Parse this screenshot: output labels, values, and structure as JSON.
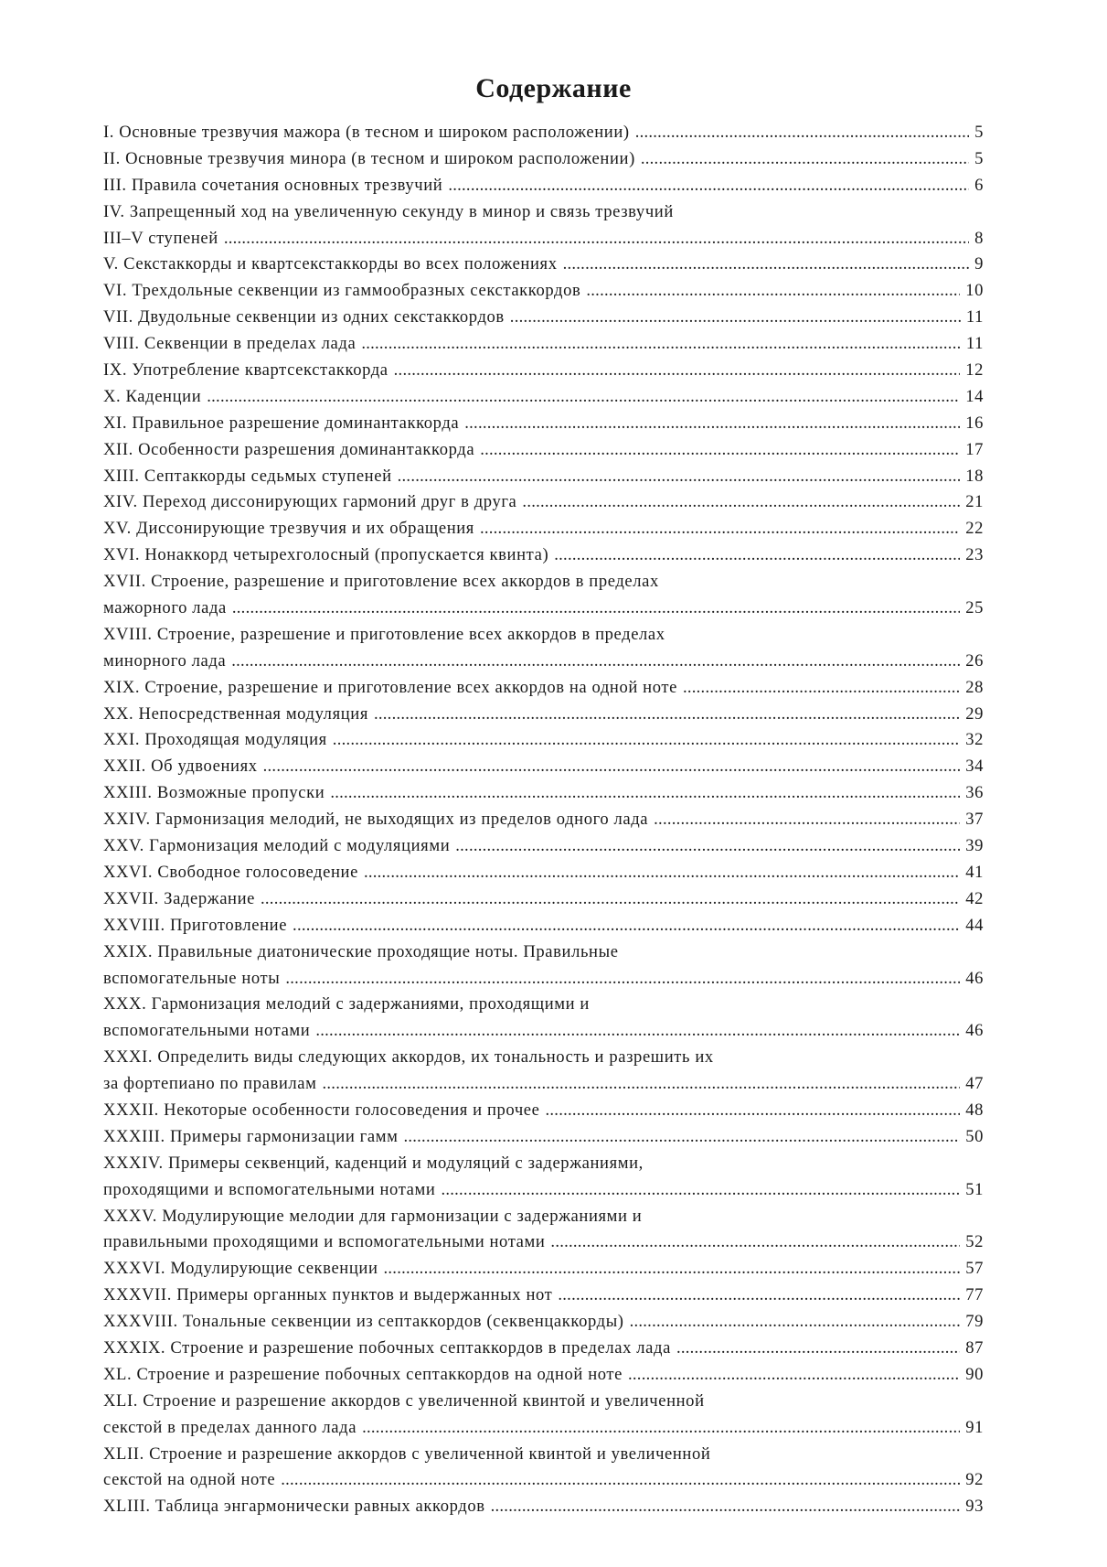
{
  "title": "Содержание",
  "entries": [
    {
      "lines": [
        "I. Основные трезвучия мажора (в тесном и широком расположении)"
      ],
      "page": "5"
    },
    {
      "lines": [
        "II. Основные трезвучия минора (в тесном и широком расположении)"
      ],
      "page": "5"
    },
    {
      "lines": [
        "III. Правила сочетания основных трезвучий"
      ],
      "page": "6"
    },
    {
      "lines": [
        "IV. Запрещенный ход на увеличенную секунду в минор и связь трезвучий",
        "III–V ступеней"
      ],
      "page": "8"
    },
    {
      "lines": [
        "V. Секстаккорды и квартсекстаккорды во всех положениях"
      ],
      "page": "9"
    },
    {
      "lines": [
        "VI. Трехдольные секвенции из гаммообразных секстаккордов"
      ],
      "page": "10"
    },
    {
      "lines": [
        "VII. Двудольные секвенции из одних секстаккордов"
      ],
      "page": "11"
    },
    {
      "lines": [
        "VIII. Секвенции в пределах лада"
      ],
      "page": "11"
    },
    {
      "lines": [
        "IX. Употребление квартсекстаккорда"
      ],
      "page": "12"
    },
    {
      "lines": [
        "X. Каденции"
      ],
      "page": "14"
    },
    {
      "lines": [
        "XI. Правильное разрешение доминантаккорда"
      ],
      "page": "16"
    },
    {
      "lines": [
        "XII. Особенности разрешения доминантаккорда"
      ],
      "page": "17"
    },
    {
      "lines": [
        "XIII. Септаккорды седьмых ступеней"
      ],
      "page": "18"
    },
    {
      "lines": [
        "XIV. Переход диссонирующих гармоний друг в друга"
      ],
      "page": "21"
    },
    {
      "lines": [
        "XV. Диссонирующие трезвучия и их обращения"
      ],
      "page": "22"
    },
    {
      "lines": [
        "XVI. Нонаккорд четырехголосный (пропускается квинта)"
      ],
      "page": "23"
    },
    {
      "lines": [
        "XVII. Строение, разрешение и приготовление всех аккордов в пределах",
        "мажорного лада"
      ],
      "page": "25"
    },
    {
      "lines": [
        "XVIII. Строение, разрешение и приготовление всех аккордов в пределах",
        "минорного лада"
      ],
      "page": "26"
    },
    {
      "lines": [
        "XIX. Строение, разрешение и приготовление всех аккордов на одной ноте"
      ],
      "page": "28"
    },
    {
      "lines": [
        "XX. Непосредственная модуляция"
      ],
      "page": "29"
    },
    {
      "lines": [
        "XXI. Проходящая модуляция"
      ],
      "page": "32"
    },
    {
      "lines": [
        "XXII. Об удвоениях"
      ],
      "page": "34"
    },
    {
      "lines": [
        "XXIII. Возможные пропуски"
      ],
      "page": "36"
    },
    {
      "lines": [
        "XXIV. Гармонизация мелодий, не выходящих из пределов одного лада"
      ],
      "page": "37"
    },
    {
      "lines": [
        "XXV. Гармонизация мелодий с модуляциями"
      ],
      "page": "39"
    },
    {
      "lines": [
        "XXVI. Свободное голосоведение"
      ],
      "page": "41"
    },
    {
      "lines": [
        "XXVII. Задержание"
      ],
      "page": "42"
    },
    {
      "lines": [
        "XXVIII. Приготовление"
      ],
      "page": "44"
    },
    {
      "lines": [
        "XXIX. Правильные диатонические проходящие ноты. Правильные",
        "вспомогательные ноты"
      ],
      "page": "46"
    },
    {
      "lines": [
        "XXX. Гармонизация мелодий с задержаниями, проходящими и",
        "вспомогательными нотами"
      ],
      "page": "46"
    },
    {
      "lines": [
        "XXXI. Определить виды следующих аккордов, их тональность и разрешить их",
        "за фортепиано по правилам"
      ],
      "page": "47"
    },
    {
      "lines": [
        "XXXII. Некоторые особенности голосоведения и прочее"
      ],
      "page": "48"
    },
    {
      "lines": [
        "XXXIII. Примеры гармонизации гамм"
      ],
      "page": "50"
    },
    {
      "lines": [
        "XXXIV. Примеры секвенций, каденций и модуляций с задержаниями,",
        "проходящими и вспомогательными нотами"
      ],
      "page": "51"
    },
    {
      "lines": [
        "XXXV. Модулирующие мелодии для гармонизации с задержаниями и",
        "правильными проходящими и вспомогательными нотами"
      ],
      "page": "52"
    },
    {
      "lines": [
        "XXXVI. Модулирующие секвенции"
      ],
      "page": "57"
    },
    {
      "lines": [
        "XXXVII. Примеры органных пунктов и выдержанных нот"
      ],
      "page": "77"
    },
    {
      "lines": [
        "XXXVIII. Тональные секвенции из септаккордов (секвенцаккорды)"
      ],
      "page": "79"
    },
    {
      "lines": [
        "XXXIX. Строение и разрешение побочных септаккордов в пределах лада"
      ],
      "page": "87"
    },
    {
      "lines": [
        "XL. Строение и разрешение побочных септаккордов на одной ноте"
      ],
      "page": "90"
    },
    {
      "lines": [
        "XLI. Строение и разрешение аккордов с увеличенной квинтой и увеличенной",
        "секстой в пределах данного лада"
      ],
      "page": "91"
    },
    {
      "lines": [
        "XLII. Строение и разрешение аккордов с увеличенной квинтой и увеличенной",
        "секстой на одной ноте"
      ],
      "page": "92"
    },
    {
      "lines": [
        "XLIII. Таблица энгармонически равных аккордов"
      ],
      "page": "93"
    }
  ]
}
